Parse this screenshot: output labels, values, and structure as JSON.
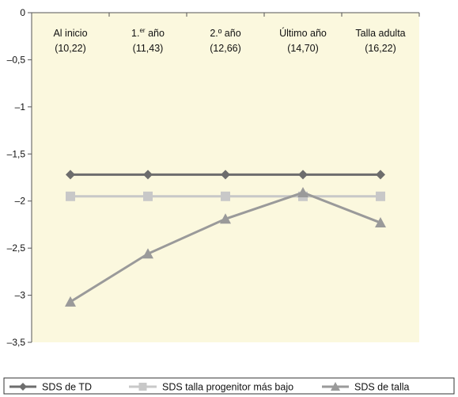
{
  "chart_data": {
    "type": "line",
    "categories": [
      {
        "label": "Al inicio",
        "value": "(10,22)"
      },
      {
        "label": "1.",
        "sup": "er",
        "label_suffix": " año",
        "value": "(11,43)"
      },
      {
        "label": "2.º año",
        "value": "(12,66)"
      },
      {
        "label": "Último año",
        "value": "(14,70)"
      },
      {
        "label": "Talla adulta",
        "value": "(16,22)"
      }
    ],
    "yticks": [
      "0",
      "–0,5",
      "–1",
      "–1,5",
      "–2",
      "–2,5",
      "–3",
      "–3,5"
    ],
    "ytick_values": [
      0,
      -0.5,
      -1,
      -1.5,
      -2,
      -2.5,
      -3,
      -3.5
    ],
    "ylim": [
      -3.5,
      0
    ],
    "grid": "none",
    "legend_placement": "bottom",
    "series": [
      {
        "name": "SDS de TD",
        "values": [
          -1.72,
          -1.72,
          -1.72,
          -1.72,
          -1.72
        ],
        "color": "#6d6d6d",
        "marker": "diamond"
      },
      {
        "name": "SDS talla progenitor más bajo",
        "values": [
          -1.95,
          -1.95,
          -1.95,
          -1.95,
          -1.95
        ],
        "color": "#c8c8c8",
        "marker": "square"
      },
      {
        "name": "SDS de talla",
        "values": [
          -3.07,
          -2.56,
          -2.19,
          -1.91,
          -2.23
        ],
        "color": "#9a9a9a",
        "marker": "triangle"
      }
    ],
    "plot_background": "#fbf8de",
    "title": "",
    "xlabel": "",
    "ylabel": ""
  }
}
